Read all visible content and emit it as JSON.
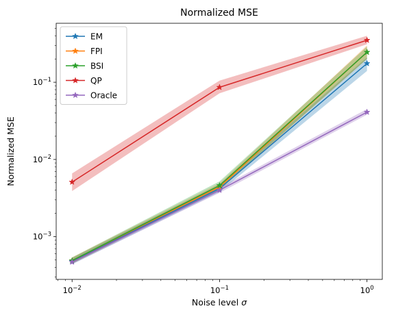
{
  "chart_data": {
    "type": "line",
    "title": "Normalized MSE",
    "xlabel": "Noise level",
    "xlabel_symbol": "σ",
    "ylabel": "Normalized MSE",
    "x_scale": "log",
    "y_scale": "log",
    "xlim": [
      0.0078,
      1.27
    ],
    "ylim": [
      0.00028,
      0.58
    ],
    "x": [
      0.01,
      0.1,
      1.0
    ],
    "x_ticks": [
      {
        "value": 0.01,
        "base": "10",
        "exp": "−2"
      },
      {
        "value": 0.1,
        "base": "10",
        "exp": "−1"
      },
      {
        "value": 1.0,
        "base": "10",
        "exp": "0"
      }
    ],
    "y_ticks": [
      {
        "value": 0.001,
        "base": "10",
        "exp": "−3"
      },
      {
        "value": 0.01,
        "base": "10",
        "exp": "−2"
      },
      {
        "value": 0.1,
        "base": "10",
        "exp": "−1"
      }
    ],
    "grid": false,
    "legend_position": "top-left",
    "series": [
      {
        "name": "EM",
        "color": "#1f77b4",
        "values": [
          0.00048,
          0.0042,
          0.175
        ],
        "lower": [
          0.00044,
          0.0038,
          0.14
        ],
        "upper": [
          0.00053,
          0.0047,
          0.21
        ],
        "marker": "star"
      },
      {
        "name": "FPI",
        "color": "#ff7f0e",
        "values": [
          0.00049,
          0.0044,
          0.245
        ],
        "lower": [
          0.00045,
          0.004,
          0.2
        ],
        "upper": [
          0.00054,
          0.0049,
          0.3
        ],
        "marker": "star"
      },
      {
        "name": "BSI",
        "color": "#2ca02c",
        "values": [
          0.00049,
          0.0046,
          0.245
        ],
        "lower": [
          0.00045,
          0.0041,
          0.2
        ],
        "upper": [
          0.00054,
          0.0052,
          0.29
        ],
        "marker": "star"
      },
      {
        "name": "QP",
        "color": "#d62728",
        "values": [
          0.0051,
          0.086,
          0.35
        ],
        "lower": [
          0.0039,
          0.072,
          0.31
        ],
        "upper": [
          0.0066,
          0.105,
          0.4
        ],
        "marker": "star"
      },
      {
        "name": "Oracle",
        "color": "#9467bd",
        "values": [
          0.00047,
          0.004,
          0.041
        ],
        "lower": [
          0.00044,
          0.0037,
          0.038
        ],
        "upper": [
          0.0005,
          0.0043,
          0.045
        ],
        "marker": "star"
      }
    ]
  }
}
